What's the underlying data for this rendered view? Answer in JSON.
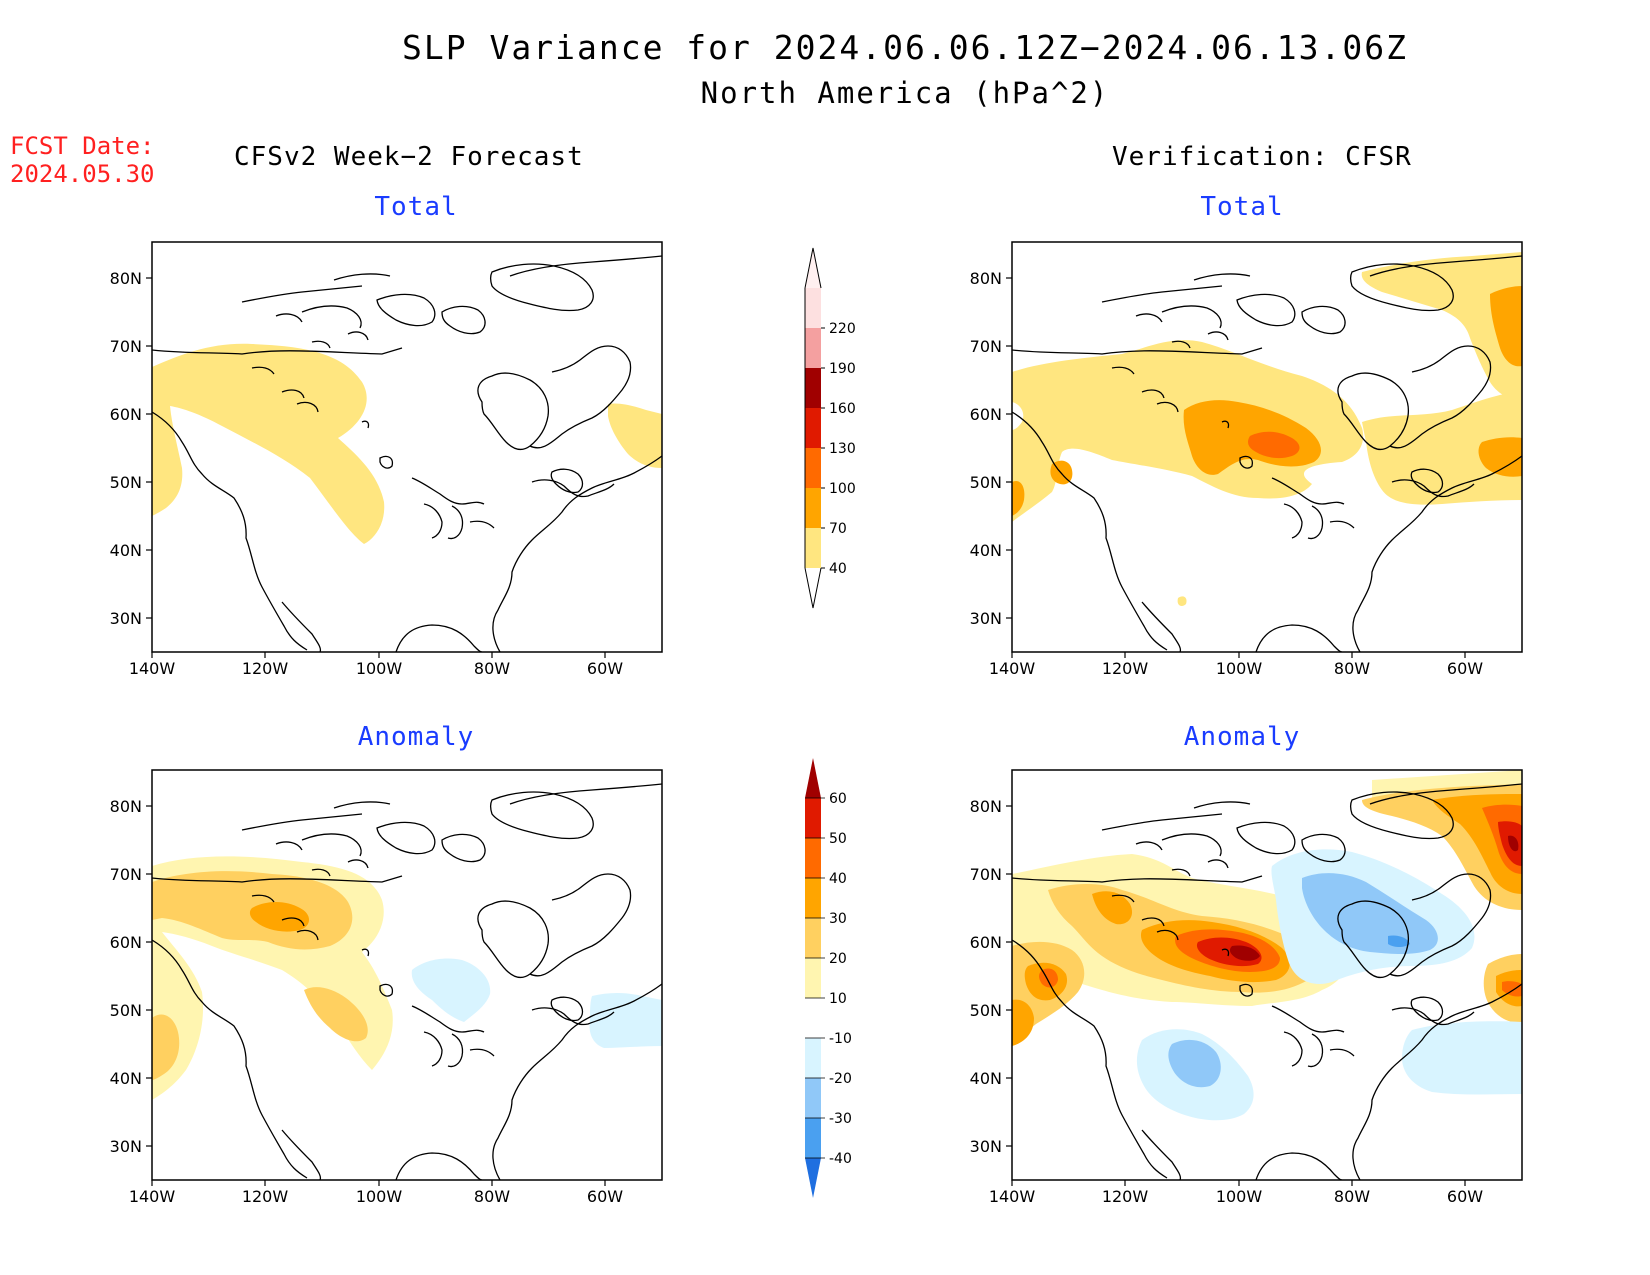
{
  "header": {
    "title": "SLP Variance for 2024.06.06.12Z−2024.06.13.06Z",
    "subtitle": "North America (hPa^2)",
    "fcst_label": "FCST Date:",
    "fcst_date": "2024.05.30"
  },
  "columns": {
    "left": "CFSv2 Week−2 Forecast",
    "right": "Verification: CFSR"
  },
  "panels": {
    "total_label": "Total",
    "anomaly_label": "Anomaly"
  },
  "axes": {
    "lat_ticks": [
      "80N",
      "70N",
      "60N",
      "50N",
      "40N",
      "30N"
    ],
    "lon_ticks": [
      "140W",
      "120W",
      "100W",
      "80W",
      "60W"
    ]
  },
  "total_colorbar": {
    "labels": [
      "40",
      "70",
      "100",
      "130",
      "160",
      "190",
      "220"
    ],
    "colors": [
      "#ffe680",
      "#ffa500",
      "#ff6a00",
      "#e01a00",
      "#a00000",
      "#f4a0a0",
      "#fde0e0"
    ]
  },
  "anomaly_colorbar": {
    "labels": [
      "-40",
      "-30",
      "-20",
      "-10",
      "10",
      "20",
      "30",
      "40",
      "50",
      "60"
    ],
    "colors": [
      "#1f6fe0",
      "#4aa0f0",
      "#90c8f8",
      "#d8f4ff",
      "#ffffff",
      "#fff5b0",
      "#ffd060",
      "#ffa500",
      "#ff6a00",
      "#e01a00",
      "#a00000"
    ]
  }
}
